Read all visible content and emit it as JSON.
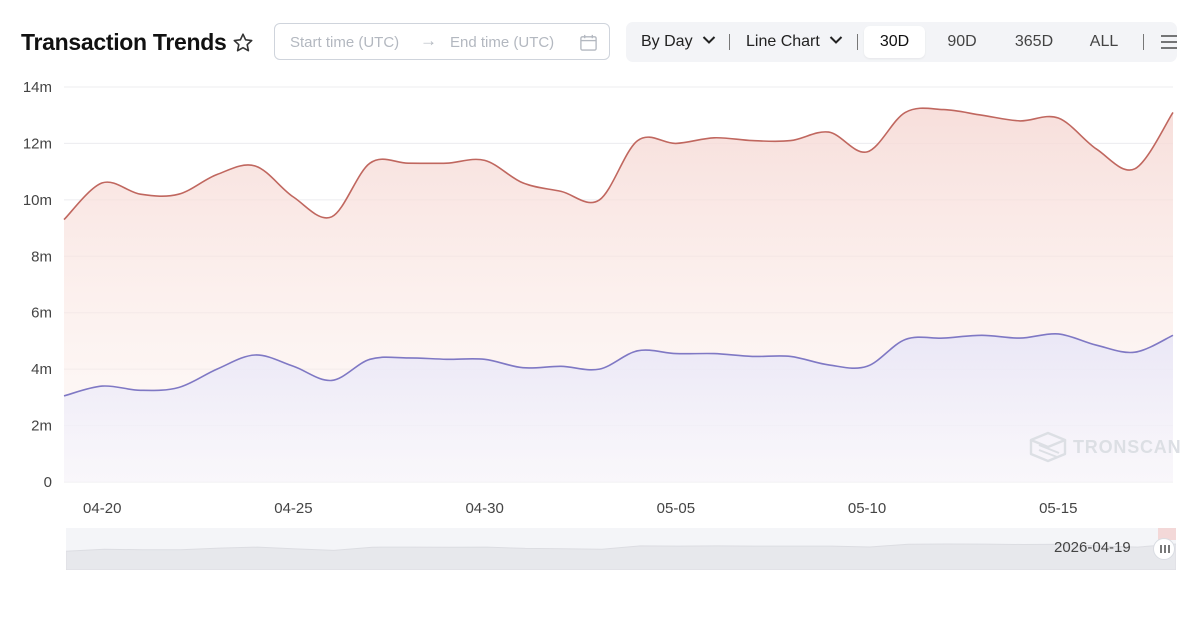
{
  "header": {
    "title": "Transaction Trends",
    "favorite_icon": "star-outline-icon"
  },
  "date_range": {
    "start_placeholder": "Start time (UTC)",
    "arrow": "→",
    "end_placeholder": "End time (UTC)",
    "calendar_icon": "calendar-icon"
  },
  "toolbar": {
    "granularity": "By Day",
    "chart_type": "Line Chart",
    "ranges": [
      "30D",
      "90D",
      "365D",
      "ALL"
    ],
    "active_range": "30D",
    "menu_icon": "hamburger-menu-icon"
  },
  "navigator": {
    "date_label": "2026-04-19"
  },
  "watermark": {
    "text": "TRONSCAN"
  },
  "colors": {
    "series_red": "#c0675f",
    "series_purple": "#7f78c4",
    "grid": "#ececef",
    "axis_text": "#444444"
  },
  "chart_data": {
    "type": "area",
    "title": "Transaction Trends",
    "x": [
      "04-19",
      "04-20",
      "04-21",
      "04-22",
      "04-23",
      "04-24",
      "04-25",
      "04-26",
      "04-27",
      "04-28",
      "04-29",
      "04-30",
      "05-01",
      "05-02",
      "05-03",
      "05-04",
      "05-05",
      "05-06",
      "05-07",
      "05-08",
      "05-09",
      "05-10",
      "05-11",
      "05-12",
      "05-13",
      "05-14",
      "05-15",
      "05-16",
      "05-17",
      "05-18"
    ],
    "x_tick_labels": [
      "04-20",
      "04-25",
      "04-30",
      "05-05",
      "05-10",
      "05-15"
    ],
    "y_tick_labels": [
      "0",
      "2m",
      "4m",
      "6m",
      "8m",
      "10m",
      "12m",
      "14m"
    ],
    "y_ticks": [
      0,
      2000000,
      4000000,
      6000000,
      8000000,
      10000000,
      12000000,
      14000000
    ],
    "ylim": [
      0,
      14000000
    ],
    "grid": true,
    "series": [
      {
        "color": "#c0675f",
        "values": [
          9300000,
          10600000,
          10200000,
          10200000,
          10900000,
          11200000,
          10100000,
          9400000,
          11300000,
          11300000,
          11300000,
          11400000,
          10600000,
          10300000,
          10000000,
          12100000,
          12000000,
          12200000,
          12100000,
          12100000,
          12400000,
          11700000,
          13100000,
          13200000,
          13000000,
          12800000,
          12900000,
          11800000,
          11100000,
          13100000
        ]
      },
      {
        "color": "#7f78c4",
        "values": [
          3050000,
          3400000,
          3250000,
          3350000,
          4000000,
          4500000,
          4100000,
          3600000,
          4350000,
          4400000,
          4350000,
          4350000,
          4050000,
          4100000,
          4000000,
          4650000,
          4550000,
          4550000,
          4450000,
          4450000,
          4150000,
          4100000,
          5050000,
          5100000,
          5200000,
          5100000,
          5250000,
          4850000,
          4600000,
          5200000
        ]
      }
    ]
  }
}
